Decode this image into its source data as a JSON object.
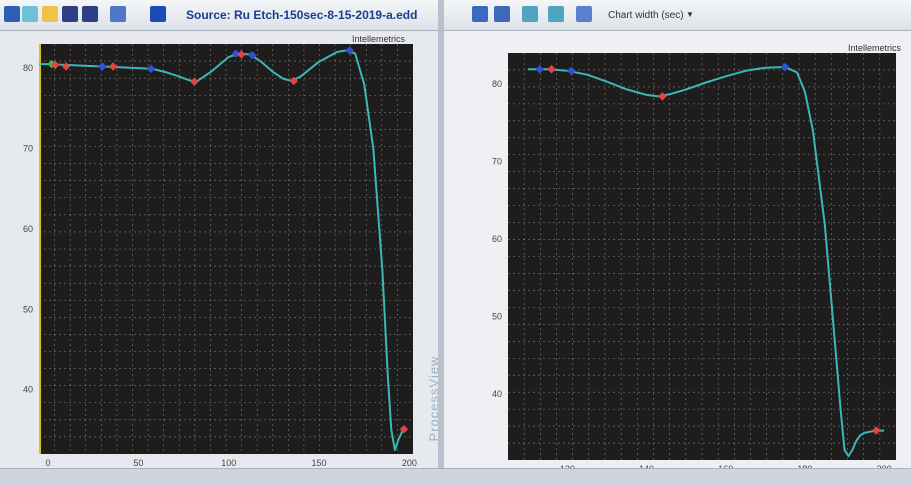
{
  "left_panel": {
    "source_label": "Source: Ru Etch-150sec-8-15-2019-a.edd",
    "brand": "Intellemetrics"
  },
  "right_panel": {
    "chart_width_label": "Chart width (sec)",
    "brand": "Intellemetrics"
  },
  "side_tab": "ProcessView",
  "colors": {
    "trace": "#3cb6b6",
    "plot_bg": "#1f1c1c",
    "grid": "#9a9a9a",
    "marker_red": "#e04545",
    "marker_blue": "#2f52d6",
    "marker_green": "#2fbf4a",
    "time_cursor": "#d9c21e"
  },
  "icons": [
    "chart-icon",
    "open-folder-icon",
    "save-icon",
    "save-as-icon",
    "refresh-icon",
    "color-icon",
    "fit-icon",
    "fit-2-icon",
    "fit-3-icon",
    "cursor-icon",
    "peak-icon"
  ],
  "chart_data": [
    {
      "type": "line",
      "title": "",
      "xlabel": "",
      "ylabel": "",
      "xlim": [
        -5,
        202
      ],
      "ylim": [
        32,
        83
      ],
      "xticks": [
        "0",
        "50",
        "100",
        "150",
        "200"
      ],
      "yticks": [
        "40",
        "50",
        "60",
        "70",
        "80"
      ],
      "grid": true,
      "time_cursor_x": -5,
      "x": [
        -5,
        0,
        10,
        20,
        30,
        40,
        50,
        58,
        65,
        72,
        78,
        82,
        90,
        100,
        106,
        112,
        118,
        124,
        130,
        135,
        140,
        150,
        160,
        165,
        170,
        175,
        180,
        185,
        188,
        190,
        192,
        194,
        196,
        198
      ],
      "y": [
        80.5,
        80.5,
        80.4,
        80.3,
        80.2,
        80.1,
        80,
        79.9,
        79.5,
        79,
        78.5,
        78.3,
        79.5,
        81.4,
        81.8,
        81.7,
        80.8,
        79.6,
        78.7,
        78.4,
        79,
        80.8,
        82,
        82.2,
        81.8,
        78,
        70,
        55,
        42,
        35,
        32.5,
        33.8,
        34.8,
        35.1
      ],
      "markers": [
        {
          "x": 2,
          "y": 80.5,
          "color": "green"
        },
        {
          "x": 4,
          "y": 80.4,
          "color": "red"
        },
        {
          "x": 10,
          "y": 80.2,
          "color": "red"
        },
        {
          "x": 30,
          "y": 80.2,
          "color": "blue"
        },
        {
          "x": 36,
          "y": 80.2,
          "color": "red"
        },
        {
          "x": 57,
          "y": 79.9,
          "color": "blue"
        },
        {
          "x": 81,
          "y": 78.3,
          "color": "red"
        },
        {
          "x": 104,
          "y": 81.8,
          "color": "blue"
        },
        {
          "x": 107,
          "y": 81.7,
          "color": "red"
        },
        {
          "x": 113,
          "y": 81.6,
          "color": "blue"
        },
        {
          "x": 136,
          "y": 78.4,
          "color": "red"
        },
        {
          "x": 167,
          "y": 82.2,
          "color": "blue"
        },
        {
          "x": 197,
          "y": 35.1,
          "color": "red"
        }
      ]
    },
    {
      "type": "line",
      "title": "",
      "xlabel": "",
      "ylabel": "",
      "xlim": [
        105,
        203
      ],
      "ylim": [
        31.5,
        84
      ],
      "xticks": [
        "120",
        "140",
        "160",
        "180",
        "200"
      ],
      "yticks": [
        "40",
        "50",
        "60",
        "70",
        "80"
      ],
      "grid": true,
      "x": [
        110,
        115,
        120,
        125,
        130,
        135,
        140,
        143,
        146,
        150,
        155,
        160,
        165,
        170,
        175,
        178,
        180,
        182,
        185,
        187,
        189,
        190,
        191,
        192,
        193,
        194,
        195,
        197,
        200
      ],
      "y": [
        81.9,
        81.9,
        81.7,
        81.2,
        80.3,
        79.3,
        78.6,
        78.4,
        78.7,
        79.3,
        80.2,
        81,
        81.7,
        82.1,
        82.2,
        81.5,
        79,
        74,
        62,
        50,
        38,
        32.8,
        32,
        32.8,
        34,
        34.7,
        35,
        35.2,
        35.3
      ],
      "markers": [
        {
          "x": 113,
          "y": 81.9,
          "color": "blue"
        },
        {
          "x": 116,
          "y": 81.9,
          "color": "red"
        },
        {
          "x": 121,
          "y": 81.7,
          "color": "blue"
        },
        {
          "x": 144,
          "y": 78.4,
          "color": "red"
        },
        {
          "x": 175,
          "y": 82.2,
          "color": "blue"
        },
        {
          "x": 198,
          "y": 35.3,
          "color": "red"
        }
      ]
    }
  ]
}
